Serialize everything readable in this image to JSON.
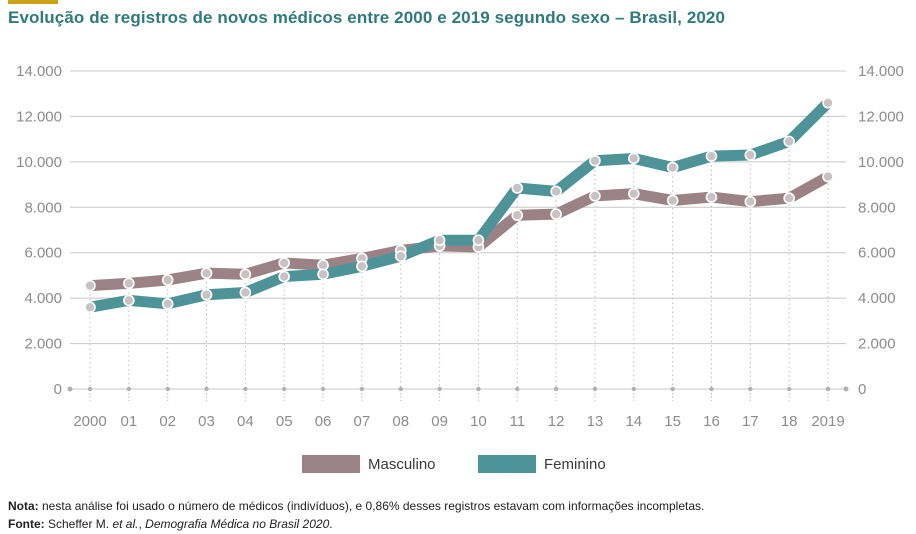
{
  "header": {
    "title": "Evolução de registros de novos médicos entre 2000 e 2019 segundo sexo – Brasil, 2020"
  },
  "chart_data": {
    "type": "line",
    "title": "Evolução de registros de novos médicos entre 2000 e 2019 segundo sexo – Brasil, 2020",
    "categories": [
      "2000",
      "01",
      "02",
      "03",
      "04",
      "05",
      "06",
      "07",
      "08",
      "09",
      "10",
      "11",
      "12",
      "13",
      "14",
      "15",
      "16",
      "17",
      "18",
      "2019"
    ],
    "series": [
      {
        "name": "Masculino",
        "color": "#9b8287",
        "values": [
          4550,
          4650,
          4800,
          5100,
          5050,
          5550,
          5450,
          5750,
          6100,
          6300,
          6250,
          7650,
          7700,
          8500,
          8600,
          8300,
          8450,
          8250,
          8400,
          9350
        ]
      },
      {
        "name": "Feminino",
        "color": "#4e9398",
        "values": [
          3600,
          3900,
          3750,
          4150,
          4250,
          4950,
          5050,
          5400,
          5850,
          6550,
          6550,
          8850,
          8700,
          10050,
          10150,
          9750,
          10250,
          10300,
          10900,
          12600
        ]
      }
    ],
    "y_ticks": [
      0,
      2000,
      4000,
      6000,
      8000,
      10000,
      12000,
      14000
    ],
    "y_tick_labels": [
      "0",
      "2.000",
      "4.000",
      "6.000",
      "8.000",
      "10.000",
      "12.000",
      "14.000"
    ],
    "ylim": [
      0,
      14000
    ],
    "xlabel": "",
    "ylabel": "",
    "grid": true,
    "legend_position": "bottom-center",
    "point_color": "#c8c2c4"
  },
  "legend": {
    "items": [
      {
        "label": "Masculino",
        "color": "#9b8287"
      },
      {
        "label": "Feminino",
        "color": "#4e9398"
      }
    ]
  },
  "notes": {
    "note_label": "Nota:",
    "note_text": " nesta análise foi usado o número de médicos (indivíduos), e 0,86% desses registros estavam com informações incompletas.",
    "source_label": "Fonte:",
    "source_text_1": " Scheffer M. ",
    "source_text_italic": "et al.",
    "source_text_2": ", ",
    "source_text_title": "Demografia Médica no Brasil 2020",
    "source_text_3": "."
  },
  "colors": {
    "title": "#2f7a7c",
    "accent": "#c9a21a",
    "gridline": "#c8c8c8",
    "tick_label": "#8c8c8c"
  }
}
